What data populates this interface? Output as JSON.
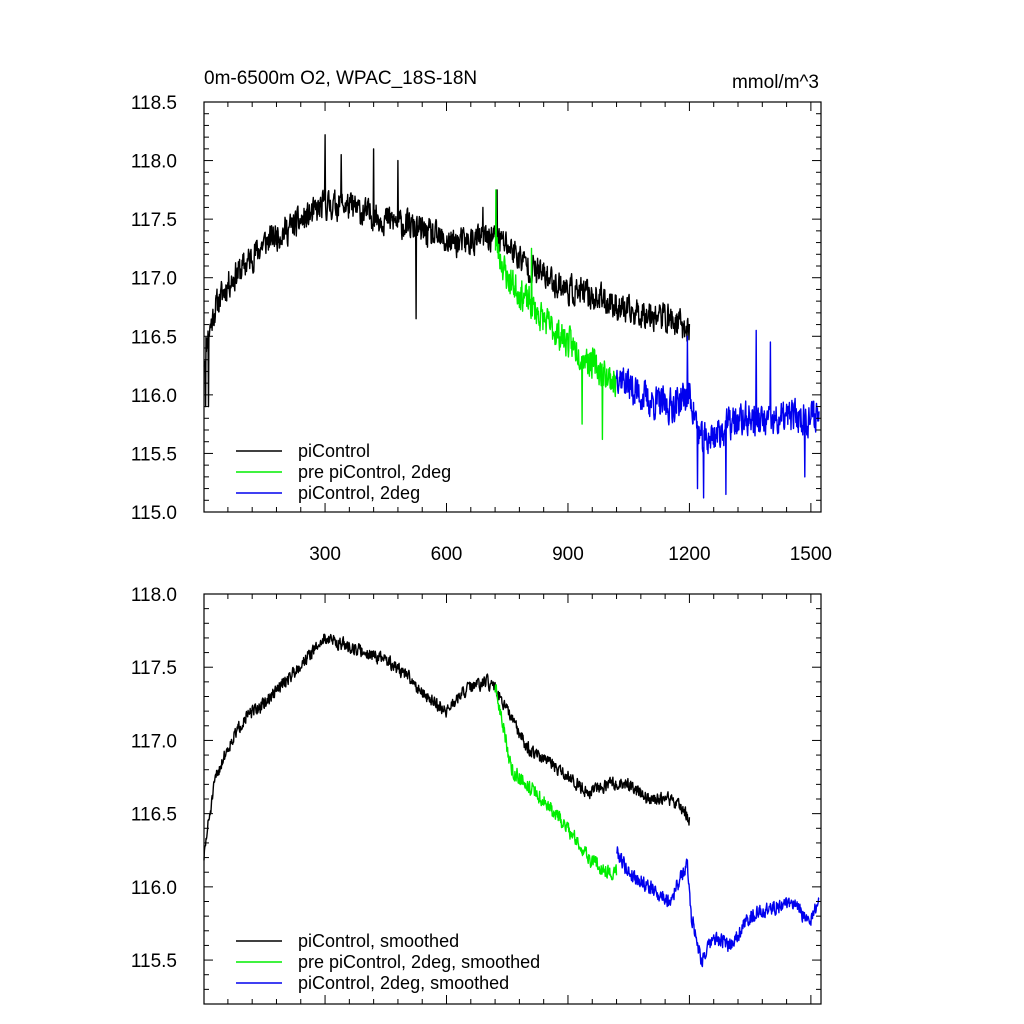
{
  "figure": {
    "title_left": "0m-6500m O2, WPAC_18S-18N",
    "title_right": "mmol/m^3"
  },
  "chart_data": [
    {
      "type": "line",
      "title": "0m-6500m O2, WPAC_18S-18N",
      "units": "mmol/m^3",
      "xlim": [
        1,
        1525
      ],
      "ylim": [
        115.0,
        118.5
      ],
      "xticks": [
        300,
        600,
        900,
        1200,
        1500
      ],
      "yticks": [
        115.0,
        115.5,
        116.0,
        116.5,
        117.0,
        117.5,
        118.0,
        118.5
      ],
      "ytick_labels": [
        "115.0",
        "115.5",
        "116.0",
        "116.5",
        "117.0",
        "117.5",
        "118.0",
        "118.5"
      ],
      "xtick_labels": [
        "300",
        "600",
        "900",
        "1200",
        "1500"
      ],
      "legend": "bottom-left",
      "series": [
        {
          "name": "piControl",
          "color": "#000000",
          "x_start": 1,
          "x_end": 1200,
          "noise": 0.17,
          "seed": 11,
          "x": [
            1,
            10,
            30,
            60,
            100,
            150,
            200,
            250,
            300,
            350,
            400,
            450,
            500,
            550,
            600,
            650,
            700,
            720,
            760,
            800,
            850,
            900,
            950,
            1000,
            1050,
            1100,
            1150,
            1200
          ],
          "y": [
            116.3,
            116.5,
            116.75,
            116.95,
            117.1,
            117.3,
            117.4,
            117.5,
            117.62,
            117.62,
            117.55,
            117.5,
            117.45,
            117.38,
            117.3,
            117.3,
            117.35,
            117.35,
            117.25,
            117.1,
            117.0,
            116.9,
            116.85,
            116.8,
            116.7,
            116.7,
            116.65,
            116.55
          ],
          "spikes": [
            [
              5,
              115.9
            ],
            [
              12,
              115.9
            ],
            [
              300,
              118.22
            ],
            [
              340,
              118.05
            ],
            [
              420,
              118.1
            ],
            [
              480,
              118.0
            ],
            [
              525,
              116.65
            ],
            [
              690,
              117.6
            ],
            [
              725,
              117.75
            ]
          ]
        },
        {
          "name": "pre piControl, 2deg",
          "color": "#00ee00",
          "x_start": 720,
          "x_end": 1020,
          "noise": 0.18,
          "seed": 23,
          "x": [
            720,
            750,
            800,
            850,
            900,
            950,
            1000,
            1020
          ],
          "y": [
            117.3,
            117.0,
            116.8,
            116.6,
            116.45,
            116.3,
            116.15,
            116.1
          ],
          "spikes": [
            [
              722,
              117.75
            ],
            [
              810,
              117.25
            ],
            [
              935,
              115.75
            ],
            [
              985,
              115.62
            ]
          ]
        },
        {
          "name": "piControl, 2deg",
          "color": "#0000ee",
          "x_start": 1020,
          "x_end": 1520,
          "noise": 0.2,
          "seed": 37,
          "x": [
            1020,
            1060,
            1100,
            1150,
            1200,
            1230,
            1260,
            1300,
            1350,
            1400,
            1450,
            1500,
            1520
          ],
          "y": [
            116.2,
            116.05,
            115.95,
            115.9,
            116.0,
            115.6,
            115.65,
            115.75,
            115.8,
            115.75,
            115.82,
            115.8,
            115.85
          ],
          "spikes": [
            [
              1195,
              116.5
            ],
            [
              1220,
              115.2
            ],
            [
              1235,
              115.12
            ],
            [
              1290,
              115.15
            ],
            [
              1365,
              116.55
            ],
            [
              1400,
              116.45
            ],
            [
              1485,
              115.3
            ]
          ]
        }
      ]
    },
    {
      "type": "line",
      "xlim": [
        1,
        1525
      ],
      "ylim": [
        115.2,
        118.0
      ],
      "xticks": [
        300,
        600,
        900,
        1200,
        1500
      ],
      "yticks": [
        115.5,
        116.0,
        116.5,
        117.0,
        117.5,
        118.0
      ],
      "ytick_labels": [
        "115.5",
        "116.0",
        "116.5",
        "117.0",
        "117.5",
        "118.0"
      ],
      "legend": "bottom-left",
      "series": [
        {
          "name": "piControl, smoothed",
          "color": "#000000",
          "x_start": 1,
          "x_end": 1200,
          "noise": 0.06,
          "seed": 51,
          "x": [
            1,
            10,
            30,
            60,
            100,
            150,
            200,
            250,
            300,
            350,
            400,
            450,
            500,
            550,
            600,
            650,
            700,
            720,
            760,
            800,
            850,
            900,
            950,
            1000,
            1050,
            1100,
            1150,
            1180,
            1200
          ],
          "y": [
            116.2,
            116.4,
            116.75,
            116.95,
            117.15,
            117.25,
            117.4,
            117.55,
            117.7,
            117.65,
            117.6,
            117.55,
            117.45,
            117.3,
            117.2,
            117.35,
            117.4,
            117.35,
            117.15,
            116.95,
            116.85,
            116.75,
            116.65,
            116.7,
            116.7,
            116.6,
            116.6,
            116.55,
            116.45
          ]
        },
        {
          "name": "pre piControl, 2deg, smoothed",
          "color": "#00ee00",
          "x_start": 720,
          "x_end": 1020,
          "noise": 0.07,
          "seed": 63,
          "x": [
            720,
            740,
            760,
            800,
            850,
            900,
            950,
            1000,
            1020
          ],
          "y": [
            117.35,
            117.1,
            116.8,
            116.7,
            116.55,
            116.4,
            116.2,
            116.1,
            116.1
          ]
        },
        {
          "name": "piControl, 2deg, smoothed",
          "color": "#0000ee",
          "x_start": 1020,
          "x_end": 1520,
          "noise": 0.07,
          "seed": 79,
          "x": [
            1020,
            1050,
            1100,
            1150,
            1195,
            1205,
            1230,
            1260,
            1300,
            1350,
            1400,
            1450,
            1500,
            1520
          ],
          "y": [
            116.25,
            116.1,
            116.0,
            115.9,
            116.15,
            115.8,
            115.5,
            115.65,
            115.6,
            115.8,
            115.85,
            115.9,
            115.75,
            115.95
          ]
        }
      ]
    }
  ]
}
